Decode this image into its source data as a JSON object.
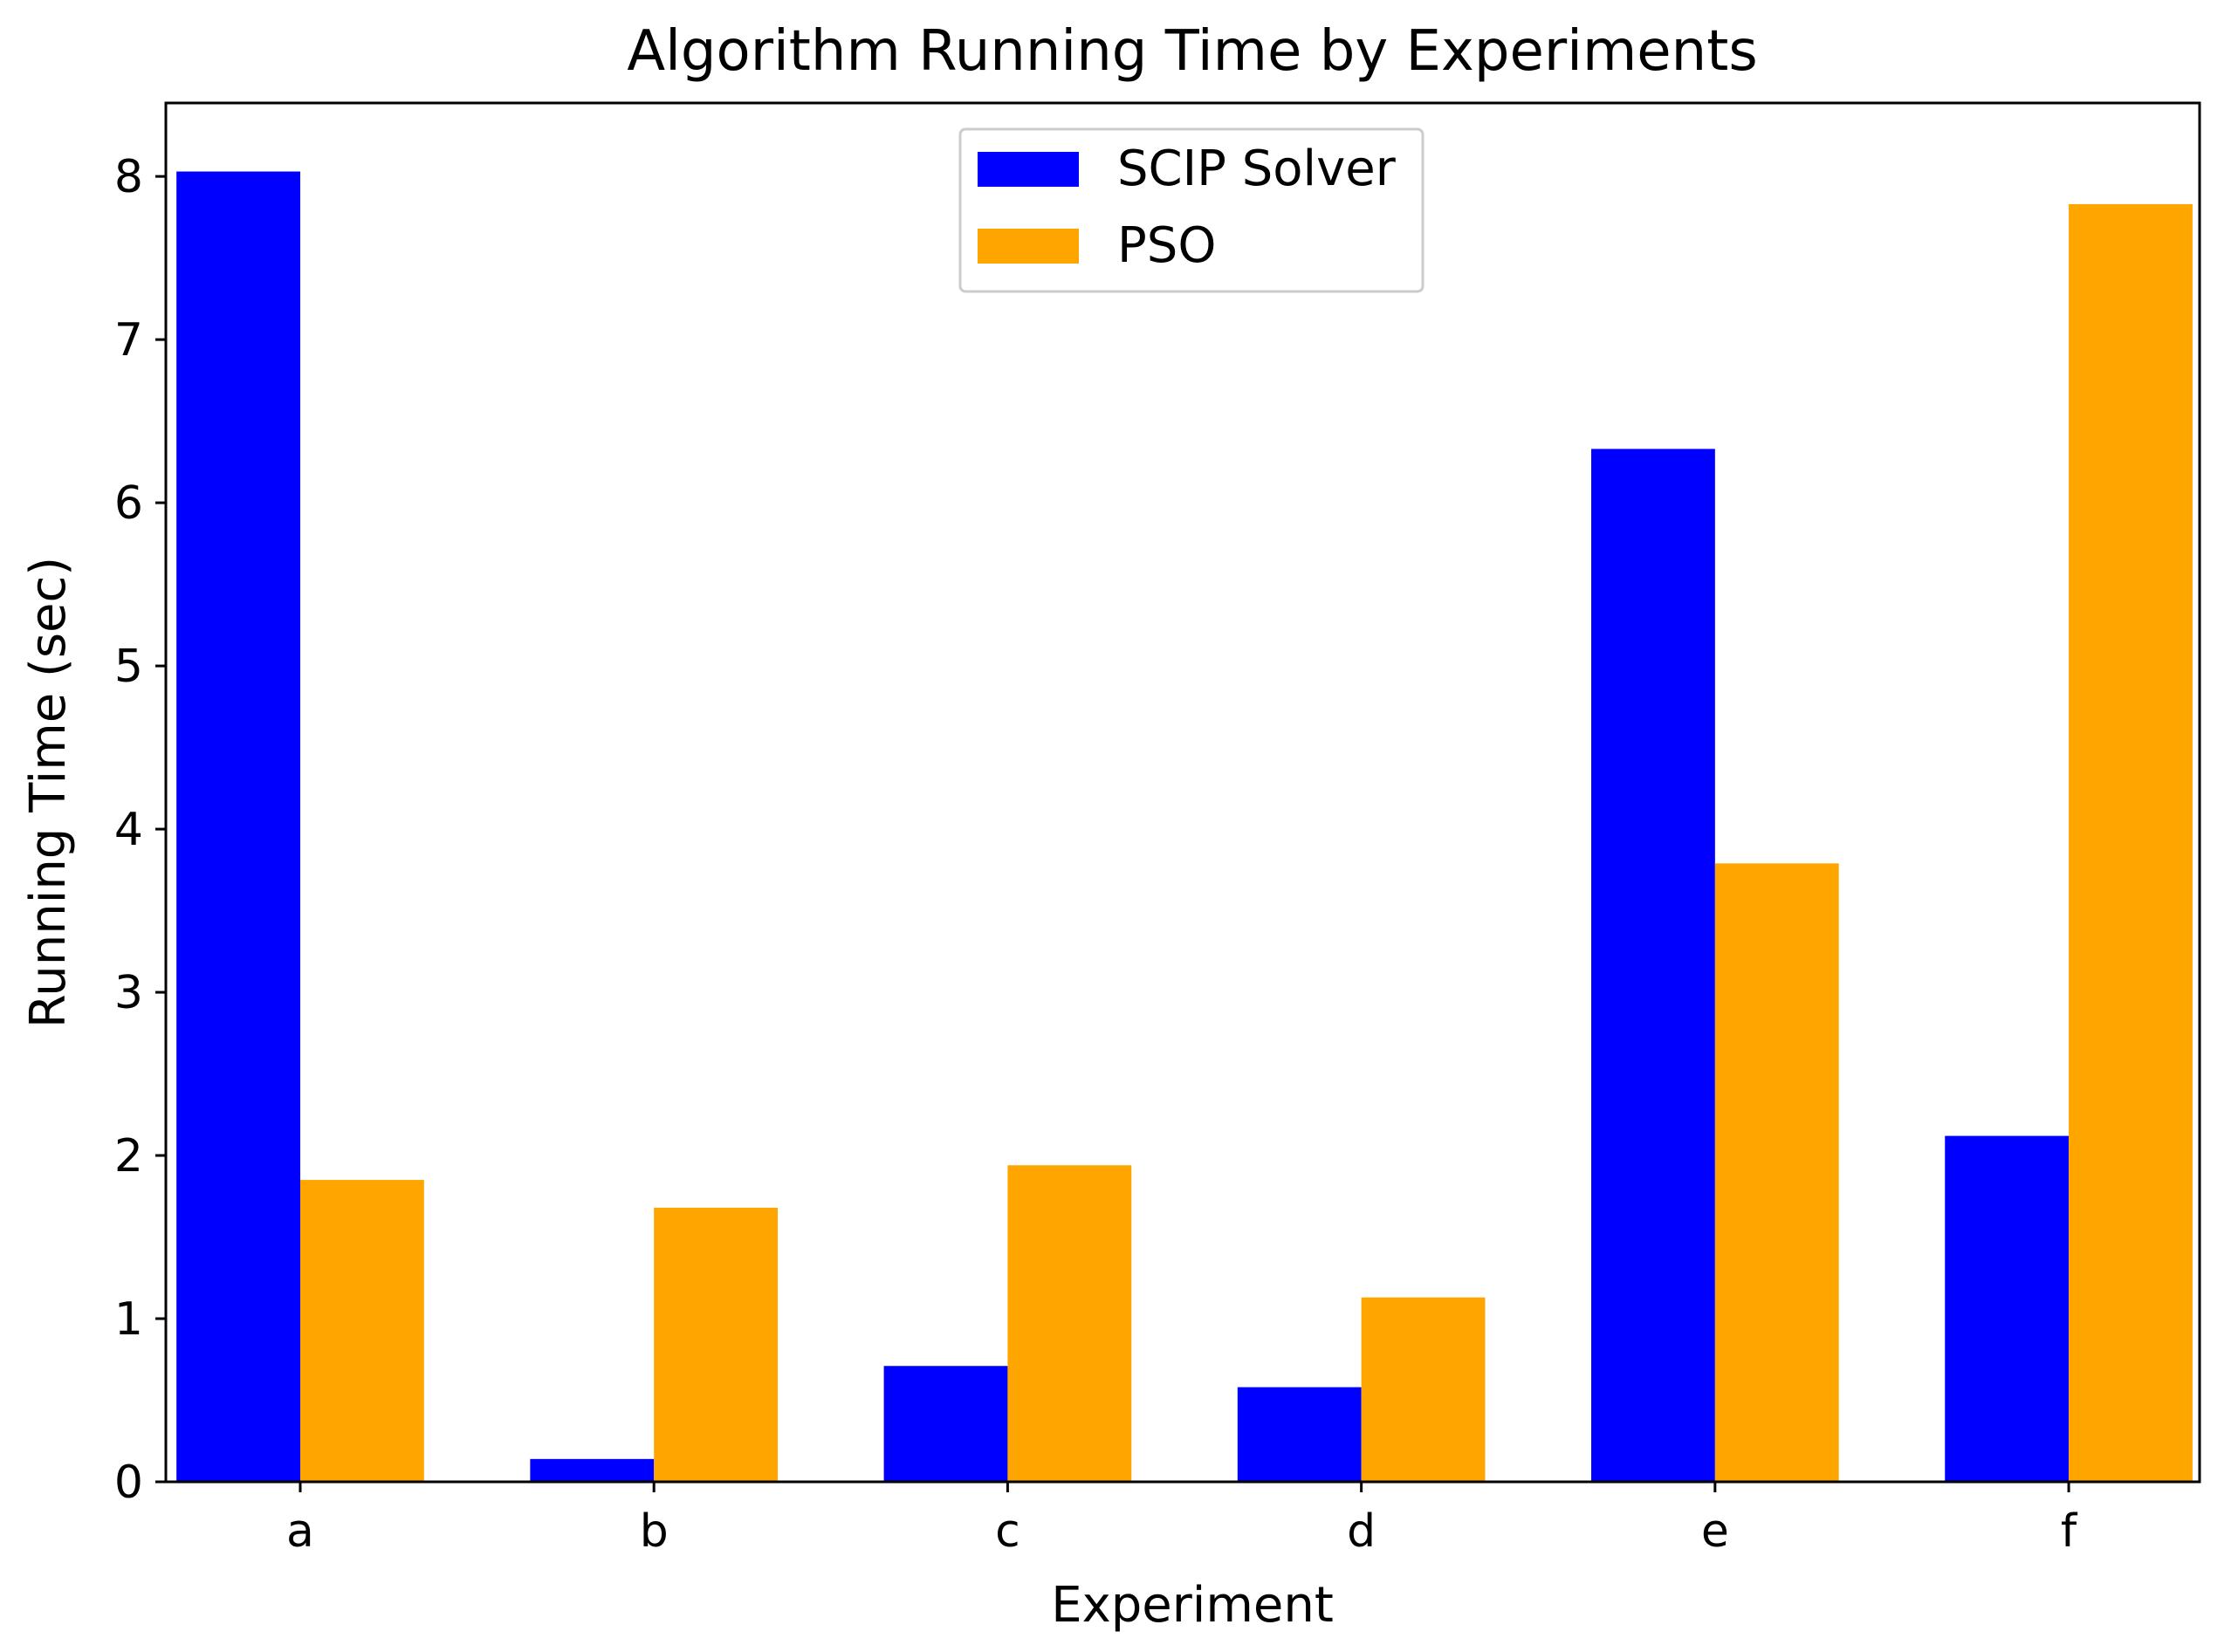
{
  "chart_data": {
    "type": "bar",
    "title": "Algorithm Running Time by Experiments",
    "xlabel": "Experiment",
    "ylabel": "Running Time  (sec)",
    "categories": [
      "a",
      "b",
      "c",
      "d",
      "e",
      "f"
    ],
    "ylim": [
      0,
      8.45
    ],
    "yticks": [
      0,
      1,
      2,
      3,
      4,
      5,
      6,
      7,
      8
    ],
    "legend_position": "top-center",
    "grid": false,
    "series": [
      {
        "name": "SCIP Solver",
        "color": "#0000ff",
        "values": [
          8.03,
          0.14,
          0.71,
          0.58,
          6.33,
          2.12
        ]
      },
      {
        "name": "PSO",
        "color": "#ffa500",
        "values": [
          1.85,
          1.68,
          1.94,
          1.13,
          3.79,
          7.83
        ]
      }
    ]
  }
}
